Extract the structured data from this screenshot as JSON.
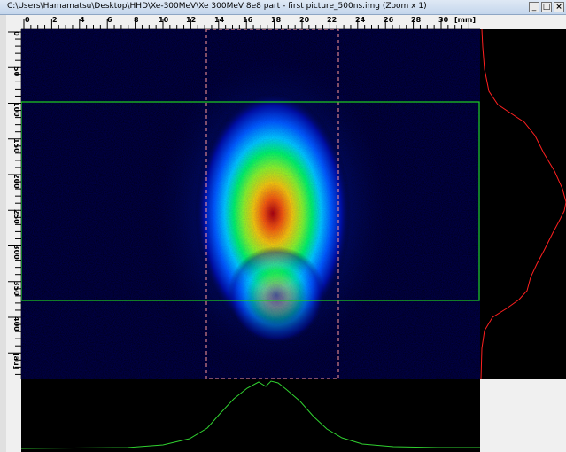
{
  "window": {
    "title": "C:\\Users\\Hamamatsu\\Desktop\\HHD\\Xe-300MeV\\Xe 300MeV 8e8 part - first picture_500ns.img (Zoom x 1)",
    "minimize_label": "_",
    "maximize_label": "□",
    "close_label": "×"
  },
  "h_ruler": {
    "labels": [
      "0",
      "2",
      "4",
      "6",
      "8",
      "10",
      "12",
      "14",
      "16",
      "18",
      "20",
      "22",
      "24",
      "26",
      "28",
      "30",
      "[mm]"
    ]
  },
  "v_ruler": {
    "labels": [
      "0",
      "50",
      "100",
      "150",
      "200",
      "250",
      "300",
      "350",
      "400",
      "[au]"
    ]
  },
  "colors": {
    "roi_rect": "#1fd01f",
    "roi_projection": "#ff9a9a",
    "vertical_profile": "#ff2020",
    "horizontal_profile": "#30d030",
    "background": "#00000c"
  },
  "icons": {
    "minimize": "minimize-icon",
    "maximize": "maximize-icon",
    "close": "close-icon"
  }
}
